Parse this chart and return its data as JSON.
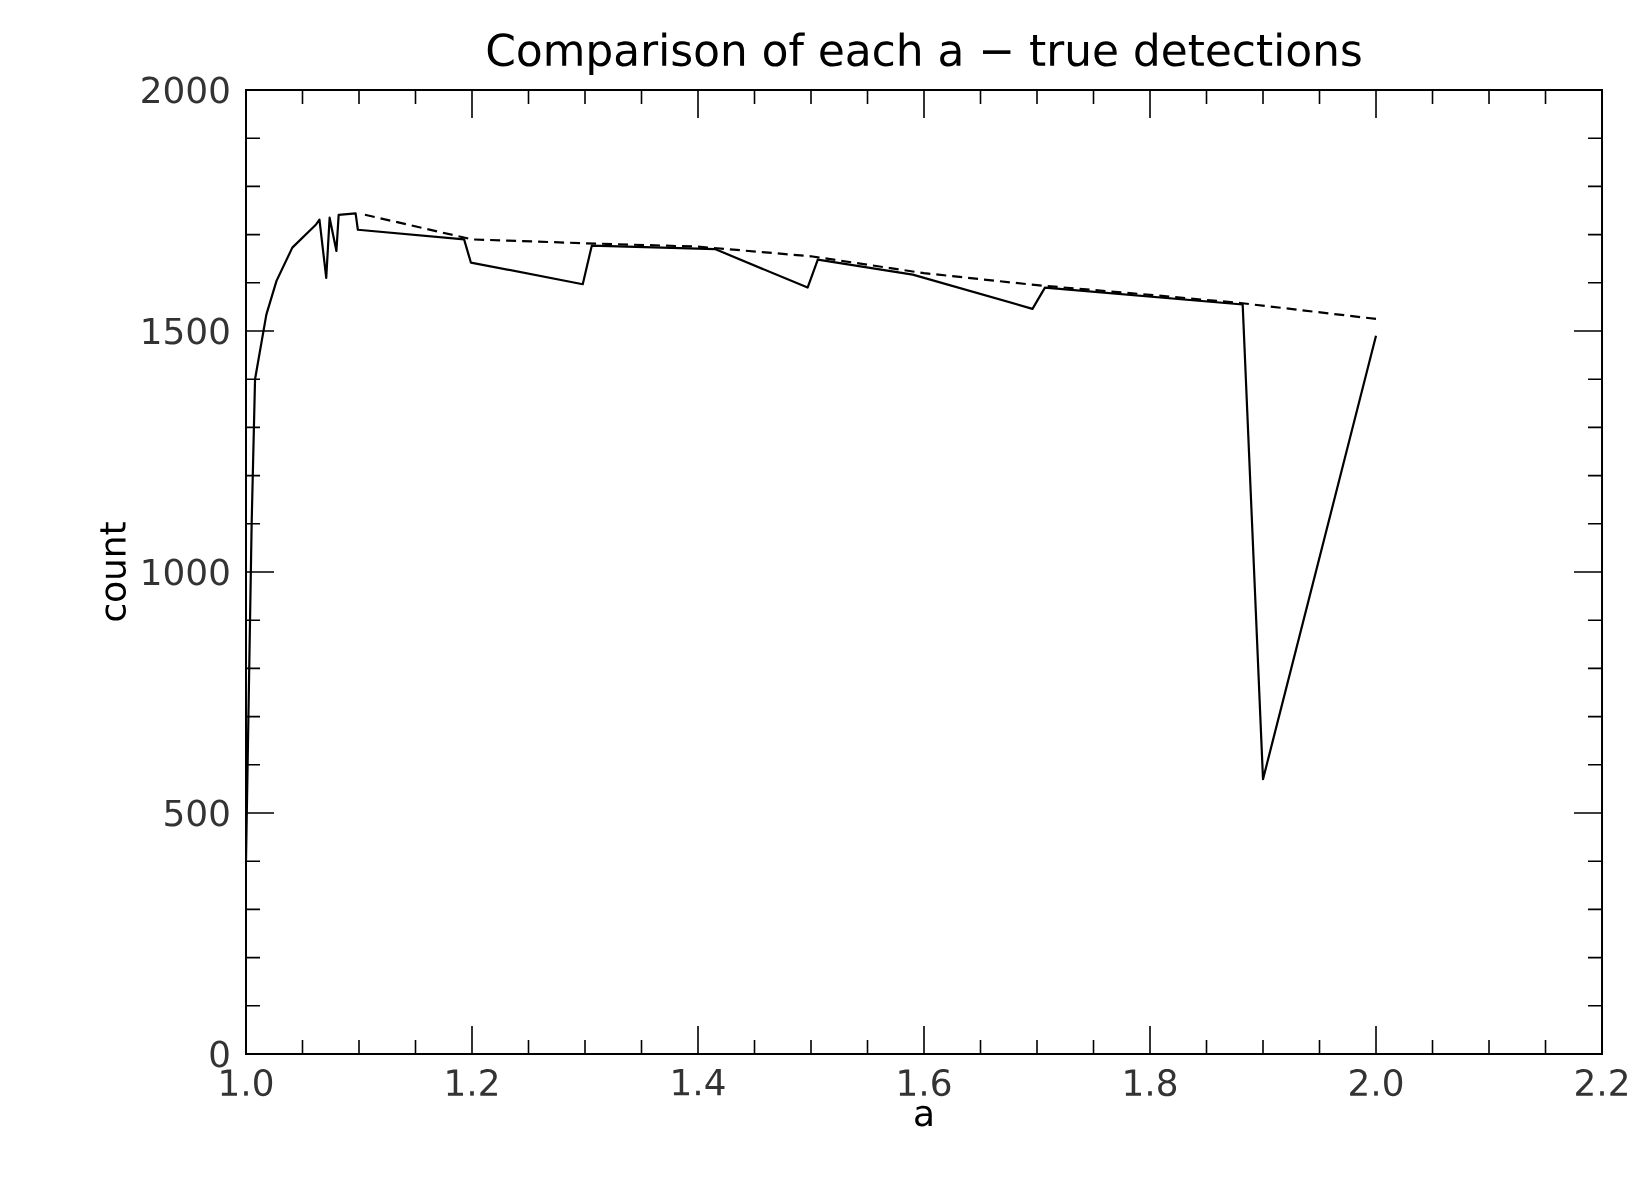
{
  "chart_data": {
    "type": "line",
    "title": "Comparison of each a − true detections",
    "xlabel": "a",
    "ylabel": "count",
    "xlim": [
      1.0,
      2.2
    ],
    "xticks": [
      {
        "value": 1.0,
        "label": "1.0"
      },
      1.2,
      1.4,
      1.6,
      1.8,
      {
        "value": 2.0,
        "label": "2.0"
      },
      2.2
    ],
    "ylim": [
      0,
      2000
    ],
    "yticks": [
      0,
      500,
      1000,
      1500,
      2000
    ],
    "grid": false,
    "marker": "none",
    "series": [
      {
        "color": "#000000",
        "line_style": "solid",
        "x": [
          1.0,
          1.005,
          1.008,
          1.018,
          1.027,
          1.041,
          1.062,
          1.065,
          1.071,
          1.074,
          1.08,
          1.082,
          1.097,
          1.099,
          1.193,
          1.199,
          1.298,
          1.306,
          1.415,
          1.497,
          1.506,
          1.59,
          1.696,
          1.707,
          1.882,
          1.9,
          2.0
        ],
        "values": [
          400,
          1100,
          1400,
          1534,
          1604,
          1673,
          1721,
          1731,
          1610,
          1735,
          1666,
          1741,
          1744,
          1710,
          1690,
          1642,
          1597,
          1677,
          1670,
          1590,
          1648,
          1617,
          1546,
          1590,
          1555,
          570,
          1490
        ]
      },
      {
        "color": "#000000",
        "line_style": "dashed",
        "x": [
          1.1,
          1.2,
          1.3,
          1.4,
          1.5,
          1.6,
          1.7,
          1.8,
          1.88,
          2.0
        ],
        "values": [
          1744,
          1690,
          1682,
          1675,
          1655,
          1620,
          1595,
          1575,
          1558,
          1525
        ]
      }
    ]
  }
}
